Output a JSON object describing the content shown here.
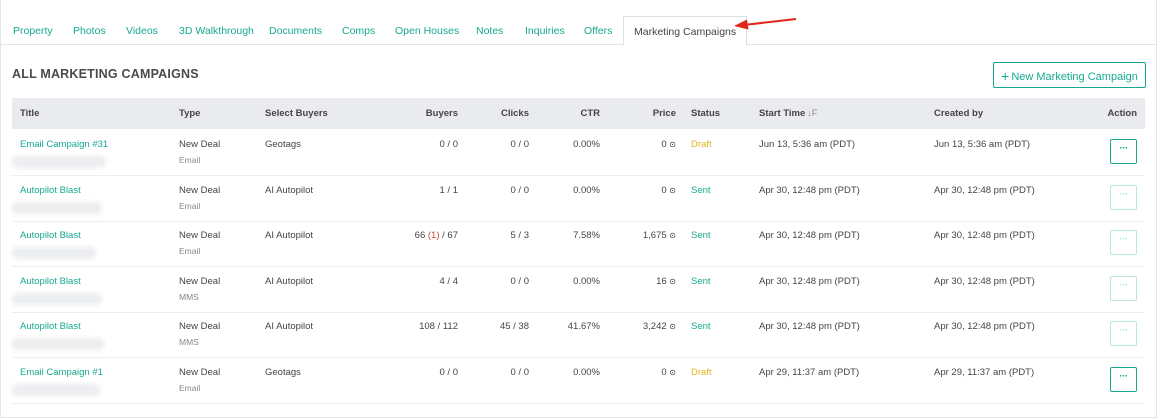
{
  "tabs": [
    {
      "label": "Property"
    },
    {
      "label": "Photos"
    },
    {
      "label": "Videos"
    },
    {
      "label": "3D Walkthrough"
    },
    {
      "label": "Documents"
    },
    {
      "label": "Comps"
    },
    {
      "label": "Open Houses"
    },
    {
      "label": "Notes"
    },
    {
      "label": "Inquiries"
    },
    {
      "label": "Offers"
    },
    {
      "label": "Marketing Campaigns",
      "active": true
    }
  ],
  "page": {
    "heading": "ALL MARKETING CAMPAIGNS",
    "new_button_plus": "+",
    "new_button_label": "New Marketing Campaign"
  },
  "colors": {
    "accent": "#17a98f",
    "draft": "#e6b422",
    "arrow": "#e0261b",
    "header_bg": "#e9ebee"
  },
  "table": {
    "columns": {
      "title": "Title",
      "type": "Type",
      "select_buyers": "Select Buyers",
      "buyers": "Buyers",
      "clicks": "Clicks",
      "ctr": "CTR",
      "price": "Price",
      "status": "Status",
      "start_time": "Start Time",
      "start_time_sort_icon": "↓F",
      "created_by": "Created by",
      "action": "Action"
    },
    "rows": [
      {
        "title": "Email Campaign #31",
        "type": "New Deal",
        "channel": "Email",
        "select_buyers": "Geotags",
        "buyers_a": "0",
        "buyers_highlight": "",
        "buyers_b": "0",
        "clicks": "0 / 0",
        "ctr": "0.00%",
        "price": "0",
        "price_icon": "coin-icon",
        "status": "Draft",
        "start_time": "Jun 13, 5:36 am (PDT)",
        "created_by": "Jun 13, 5:36 am (PDT)",
        "action_label": "···",
        "action_enabled": true
      },
      {
        "title": "Autopilot Blast",
        "type": "New Deal",
        "channel": "Email",
        "select_buyers": "AI Autopilot",
        "buyers_a": "1",
        "buyers_highlight": "",
        "buyers_b": "1",
        "clicks": "0 / 0",
        "ctr": "0.00%",
        "price": "0",
        "price_icon": "coin-icon",
        "status": "Sent",
        "start_time": "Apr 30, 12:48 pm (PDT)",
        "created_by": "Apr 30, 12:48 pm (PDT)",
        "action_label": "···",
        "action_enabled": false
      },
      {
        "title": "Autopilot Blast",
        "type": "New Deal",
        "channel": "Email",
        "select_buyers": "AI Autopilot",
        "buyers_a": "66",
        "buyers_highlight": "(1)",
        "buyers_b": "67",
        "clicks": "5 / 3",
        "ctr": "7.58%",
        "price": "1,675",
        "price_icon": "coin-icon",
        "status": "Sent",
        "start_time": "Apr 30, 12:48 pm (PDT)",
        "created_by": "Apr 30, 12:48 pm (PDT)",
        "action_label": "···",
        "action_enabled": false
      },
      {
        "title": "Autopilot Blast",
        "type": "New Deal",
        "channel": "MMS",
        "select_buyers": "AI Autopilot",
        "buyers_a": "4",
        "buyers_highlight": "",
        "buyers_b": "4",
        "clicks": "0 / 0",
        "ctr": "0.00%",
        "price": "16",
        "price_icon": "coin-icon",
        "status": "Sent",
        "start_time": "Apr 30, 12:48 pm (PDT)",
        "created_by": "Apr 30, 12:48 pm (PDT)",
        "action_label": "···",
        "action_enabled": false
      },
      {
        "title": "Autopilot Blast",
        "type": "New Deal",
        "channel": "MMS",
        "select_buyers": "AI Autopilot",
        "buyers_a": "108",
        "buyers_highlight": "",
        "buyers_b": "112",
        "clicks": "45 / 38",
        "ctr": "41.67%",
        "price": "3,242",
        "price_icon": "coin-icon",
        "status": "Sent",
        "start_time": "Apr 30, 12:48 pm (PDT)",
        "created_by": "Apr 30, 12:48 pm (PDT)",
        "action_label": "···",
        "action_enabled": false
      },
      {
        "title": "Email Campaign #1",
        "type": "New Deal",
        "channel": "Email",
        "select_buyers": "Geotags",
        "buyers_a": "0",
        "buyers_highlight": "",
        "buyers_b": "0",
        "clicks": "0 / 0",
        "ctr": "0.00%",
        "price": "0",
        "price_icon": "coin-icon",
        "status": "Draft",
        "start_time": "Apr 29, 11:37 am (PDT)",
        "created_by": "Apr 29, 11:37 am (PDT)",
        "action_label": "···",
        "action_enabled": true
      }
    ]
  }
}
